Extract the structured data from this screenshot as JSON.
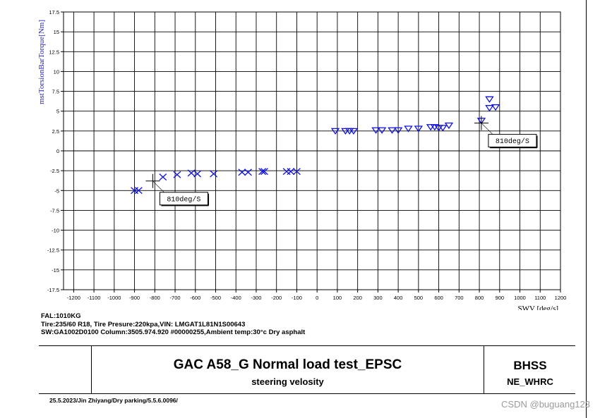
{
  "chart_data": {
    "type": "scatter",
    "xlabel": "SWV [deg/s]",
    "ylabel": "mstTorsionBarTorque[Nm]",
    "xlim": [
      -1250,
      1200
    ],
    "ylim": [
      -17.5,
      17.5
    ],
    "x_ticks": [
      -1200,
      -1100,
      -1000,
      -900,
      -800,
      -700,
      -600,
      -500,
      -400,
      -300,
      -200,
      -100,
      0,
      100,
      200,
      300,
      400,
      500,
      600,
      700,
      800,
      900,
      1000,
      1100,
      1200
    ],
    "x_tick_labels": [
      "-1200",
      "-1100",
      "-1000",
      "-900",
      "-800",
      "-700",
      "-600",
      "-500",
      "-400",
      "-300",
      "-200",
      "-100",
      "0",
      "100",
      "200",
      "300",
      "400",
      "500",
      "600",
      "700",
      "800",
      "900",
      "1000",
      "1100",
      "1200"
    ],
    "y_ticks": [
      17.5,
      15,
      12.5,
      10,
      7.5,
      5,
      2.5,
      0,
      -2.5,
      -5,
      -7.5,
      -10,
      -12.5,
      -15,
      -17.5
    ],
    "y_tick_labels": [
      "17.5",
      "15",
      "12.5",
      "10",
      "7.5",
      "5",
      "2.5",
      "0",
      "-2.5",
      "-5",
      "-7.5",
      "-10",
      "-12.5",
      "-15",
      "-17.5"
    ],
    "grid": true,
    "series": [
      {
        "marker": "x",
        "color": "#1010e0",
        "points": [
          [
            -900,
            -5.0
          ],
          [
            -880,
            -5.0
          ],
          [
            -760,
            -3.3
          ],
          [
            -690,
            -3.0
          ],
          [
            -620,
            -2.8
          ],
          [
            -590,
            -2.9
          ],
          [
            -510,
            -2.9
          ],
          [
            -370,
            -2.7
          ],
          [
            -340,
            -2.7
          ],
          [
            -270,
            -2.6
          ],
          [
            -260,
            -2.6
          ],
          [
            -150,
            -2.6
          ],
          [
            -130,
            -2.6
          ],
          [
            -100,
            -2.6
          ]
        ]
      },
      {
        "marker": "triangle-down",
        "color": "#1010e0",
        "points": [
          [
            90,
            2.5
          ],
          [
            140,
            2.5
          ],
          [
            160,
            2.5
          ],
          [
            180,
            2.5
          ],
          [
            290,
            2.6
          ],
          [
            320,
            2.6
          ],
          [
            370,
            2.6
          ],
          [
            400,
            2.6
          ],
          [
            450,
            2.8
          ],
          [
            500,
            2.8
          ],
          [
            560,
            3.0
          ],
          [
            580,
            3.0
          ],
          [
            600,
            2.9
          ],
          [
            620,
            2.9
          ],
          [
            650,
            3.2
          ],
          [
            810,
            3.8
          ],
          [
            850,
            6.5
          ],
          [
            850,
            5.4
          ],
          [
            880,
            5.5
          ]
        ]
      }
    ],
    "annotations": [
      {
        "text": "810deg/S",
        "at": [
          -810,
          -3.8
        ]
      },
      {
        "text": "810deg/S",
        "at": [
          810,
          3.5
        ]
      }
    ]
  },
  "info": {
    "line1": "FAL:1010KG",
    "line2": "Tire:235/60 R18, Tire Presure:220kpa,VIN: LMGAT1L81N1S00643",
    "line3": "SW:GA1002D0100 Column:3505.974.920 #00000255,Ambient temp:30°c Dry asphalt"
  },
  "title_block": {
    "title": "GAC A58_G Normal load test_EPSC",
    "subtitle": "steering velosity",
    "right_top": "BHSS",
    "right_bottom": "NE_WHRC"
  },
  "footer_note": "25.5.2023/Jin Zhiyang/Dry parking/5.5.6.0096/",
  "watermark": "CSDN @buguang123"
}
